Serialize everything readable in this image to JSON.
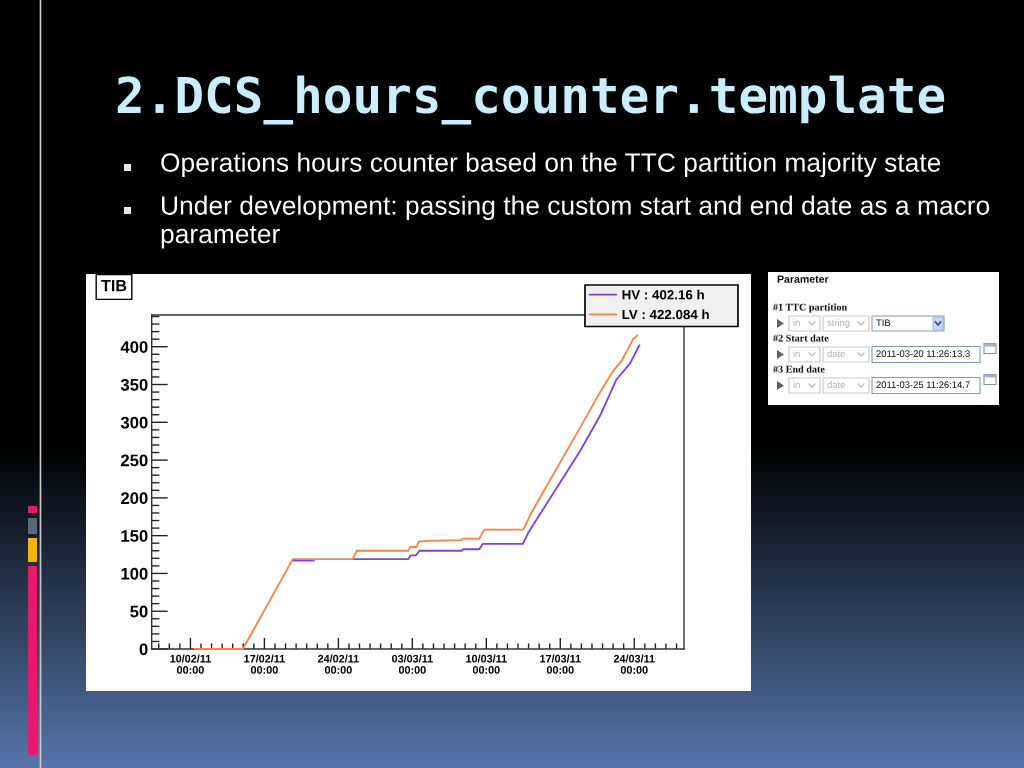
{
  "chart_data": [
    {
      "type": "other",
      "title": "2.DCS_hours_counter.template",
      "annotations": [
        "Operations hours counter based on the TTC partition majority state",
        "Under development: passing the custom start and end date as a macro parameter"
      ]
    },
    {
      "type": "line",
      "title": "TIB",
      "legend": "top right",
      "xlim": [
        "2011-02-06T08:00",
        "2011-03-28T17:00"
      ],
      "xticks": [
        {
          "value": "2011-02-07",
          "label": null
        },
        {
          "value": "2011-02-08",
          "label": null
        },
        {
          "value": "2011-02-09",
          "label": null
        },
        {
          "value": "2011-02-10",
          "label": "10/02/11\n00:00"
        },
        {
          "value": "2011-02-11",
          "label": null
        },
        {
          "value": "2011-02-12",
          "label": null
        },
        {
          "value": "2011-02-13",
          "label": null
        },
        {
          "value": "2011-02-14",
          "label": null
        },
        {
          "value": "2011-02-15",
          "label": null
        },
        {
          "value": "2011-02-16",
          "label": null
        },
        {
          "value": "2011-02-17",
          "label": "17/02/11\n00:00"
        },
        {
          "value": "2011-02-18",
          "label": null
        },
        {
          "value": "2011-02-19",
          "label": null
        },
        {
          "value": "2011-02-20",
          "label": null
        },
        {
          "value": "2011-02-21",
          "label": null
        },
        {
          "value": "2011-02-22",
          "label": null
        },
        {
          "value": "2011-02-23",
          "label": null
        },
        {
          "value": "2011-02-24",
          "label": "24/02/11\n00:00"
        },
        {
          "value": "2011-02-25",
          "label": null
        },
        {
          "value": "2011-02-26",
          "label": null
        },
        {
          "value": "2011-02-27",
          "label": null
        },
        {
          "value": "2011-02-28",
          "label": null
        },
        {
          "value": "2011-03-01",
          "label": null
        },
        {
          "value": "2011-03-02",
          "label": null
        },
        {
          "value": "2011-03-03",
          "label": "03/03/11\n00:00"
        },
        {
          "value": "2011-03-04",
          "label": null
        },
        {
          "value": "2011-03-05",
          "label": null
        },
        {
          "value": "2011-03-06",
          "label": null
        },
        {
          "value": "2011-03-07",
          "label": null
        },
        {
          "value": "2011-03-08",
          "label": null
        },
        {
          "value": "2011-03-09",
          "label": null
        },
        {
          "value": "2011-03-10",
          "label": "10/03/11\n00:00"
        },
        {
          "value": "2011-03-11",
          "label": null
        },
        {
          "value": "2011-03-12",
          "label": null
        },
        {
          "value": "2011-03-13",
          "label": null
        },
        {
          "value": "2011-03-14",
          "label": null
        },
        {
          "value": "2011-03-15",
          "label": null
        },
        {
          "value": "2011-03-16",
          "label": null
        },
        {
          "value": "2011-03-17",
          "label": "17/03/11\n00:00"
        },
        {
          "value": "2011-03-18",
          "label": null
        },
        {
          "value": "2011-03-19",
          "label": null
        },
        {
          "value": "2011-03-20",
          "label": null
        },
        {
          "value": "2011-03-21",
          "label": null
        },
        {
          "value": "2011-03-22",
          "label": null
        },
        {
          "value": "2011-03-23",
          "label": null
        },
        {
          "value": "2011-03-24",
          "label": "24/03/11\n00:00"
        },
        {
          "value": "2011-03-25",
          "label": null
        },
        {
          "value": "2011-03-26",
          "label": null
        },
        {
          "value": "2011-03-27",
          "label": null
        },
        {
          "value": "2011-03-28",
          "label": null
        }
      ],
      "ylim": [
        0,
        442
      ],
      "yticks": [
        0,
        {
          "value": 10,
          "label": null
        },
        {
          "value": 20,
          "label": null
        },
        {
          "value": 30,
          "label": null
        },
        {
          "value": 40,
          "label": null
        },
        50,
        {
          "value": 60,
          "label": null
        },
        {
          "value": 70,
          "label": null
        },
        {
          "value": 80,
          "label": null
        },
        {
          "value": 90,
          "label": null
        },
        100,
        {
          "value": 110,
          "label": null
        },
        {
          "value": 120,
          "label": null
        },
        {
          "value": 130,
          "label": null
        },
        {
          "value": 140,
          "label": null
        },
        150,
        {
          "value": 160,
          "label": null
        },
        {
          "value": 170,
          "label": null
        },
        {
          "value": 180,
          "label": null
        },
        {
          "value": 190,
          "label": null
        },
        200,
        {
          "value": 210,
          "label": null
        },
        {
          "value": 220,
          "label": null
        },
        {
          "value": 230,
          "label": null
        },
        {
          "value": 240,
          "label": null
        },
        250,
        {
          "value": 260,
          "label": null
        },
        {
          "value": 270,
          "label": null
        },
        {
          "value": 280,
          "label": null
        },
        {
          "value": 290,
          "label": null
        },
        300,
        {
          "value": 310,
          "label": null
        },
        {
          "value": 320,
          "label": null
        },
        {
          "value": 330,
          "label": null
        },
        {
          "value": 340,
          "label": null
        },
        350,
        {
          "value": 360,
          "label": null
        },
        {
          "value": 370,
          "label": null
        },
        {
          "value": 380,
          "label": null
        },
        {
          "value": 390,
          "label": null
        },
        400,
        {
          "value": 410,
          "label": null
        },
        {
          "value": 420,
          "label": null
        },
        {
          "value": 430,
          "label": null
        },
        {
          "value": 440,
          "label": null
        }
      ],
      "series": [
        {
          "name": "HV : 402.16 h",
          "color": "#8040e0",
          "x": [
            "2011-02-19T16:30",
            "2011-02-21T16:00",
            "2011-02-23T12:00",
            "2011-02-25T08:40",
            "2011-03-02T15:00",
            "2011-03-02T20:30",
            "2011-03-03T08:30",
            "2011-03-03T16:00",
            "2011-03-07T16:00",
            "2011-03-07T19:30",
            "2011-03-09T08:00",
            "2011-03-09T16:00",
            "2011-03-13T11:00",
            "2011-03-13T23:30",
            "2011-03-14T07:00",
            "2011-03-18T21:00",
            "2011-03-20T18:30",
            "2011-03-22T08:00",
            "2011-03-23T14:30",
            "2011-03-24T11:45"
          ],
          "values": [
            117,
            117,
            null,
            119,
            119,
            124,
            124,
            130,
            130,
            132,
            132,
            139,
            139,
            154,
            161,
            262,
            309,
            357,
            378,
            402
          ]
        },
        {
          "name": "LV : 422.084 h",
          "color": "#ff8040",
          "x": [
            "2011-02-10T09:00",
            "2011-02-14T23:00",
            "2011-02-19T16:30",
            "2011-02-25T08:40",
            "2011-02-25T17:45",
            "2011-03-02T15:00",
            "2011-03-02T19:00",
            "2011-03-03T09:30",
            "2011-03-03T14:30",
            "2011-03-04T08:30",
            "2011-03-07T16:00",
            "2011-03-07T18:30",
            "2011-03-09T08:00",
            "2011-03-09T19:00",
            "2011-03-13T12:00",
            "2011-03-13T23:30",
            "2011-03-14T07:00",
            "2011-03-18T21:00",
            "2011-03-20T18:30",
            "2011-03-22T00:00",
            "2011-03-22T19:00",
            "2011-03-23T21:30",
            "2011-03-24T07:00"
          ],
          "values": [
            0,
            0,
            119,
            119,
            130,
            130,
            135,
            135,
            142,
            143,
            144,
            146,
            146,
            158,
            158,
            172,
            181,
            293,
            340,
            368,
            381,
            410,
            415
          ]
        }
      ]
    },
    {
      "type": "other",
      "title": "Parameter",
      "annotations": [
        "#1 TTC partition",
        "in",
        "string",
        "TIB",
        "#2 Start date",
        "in",
        "date",
        "2011-03-20 11:26:13.3",
        "#3 End date",
        "in",
        "date",
        "2011-03-25 11:26:14.7"
      ]
    }
  ]
}
